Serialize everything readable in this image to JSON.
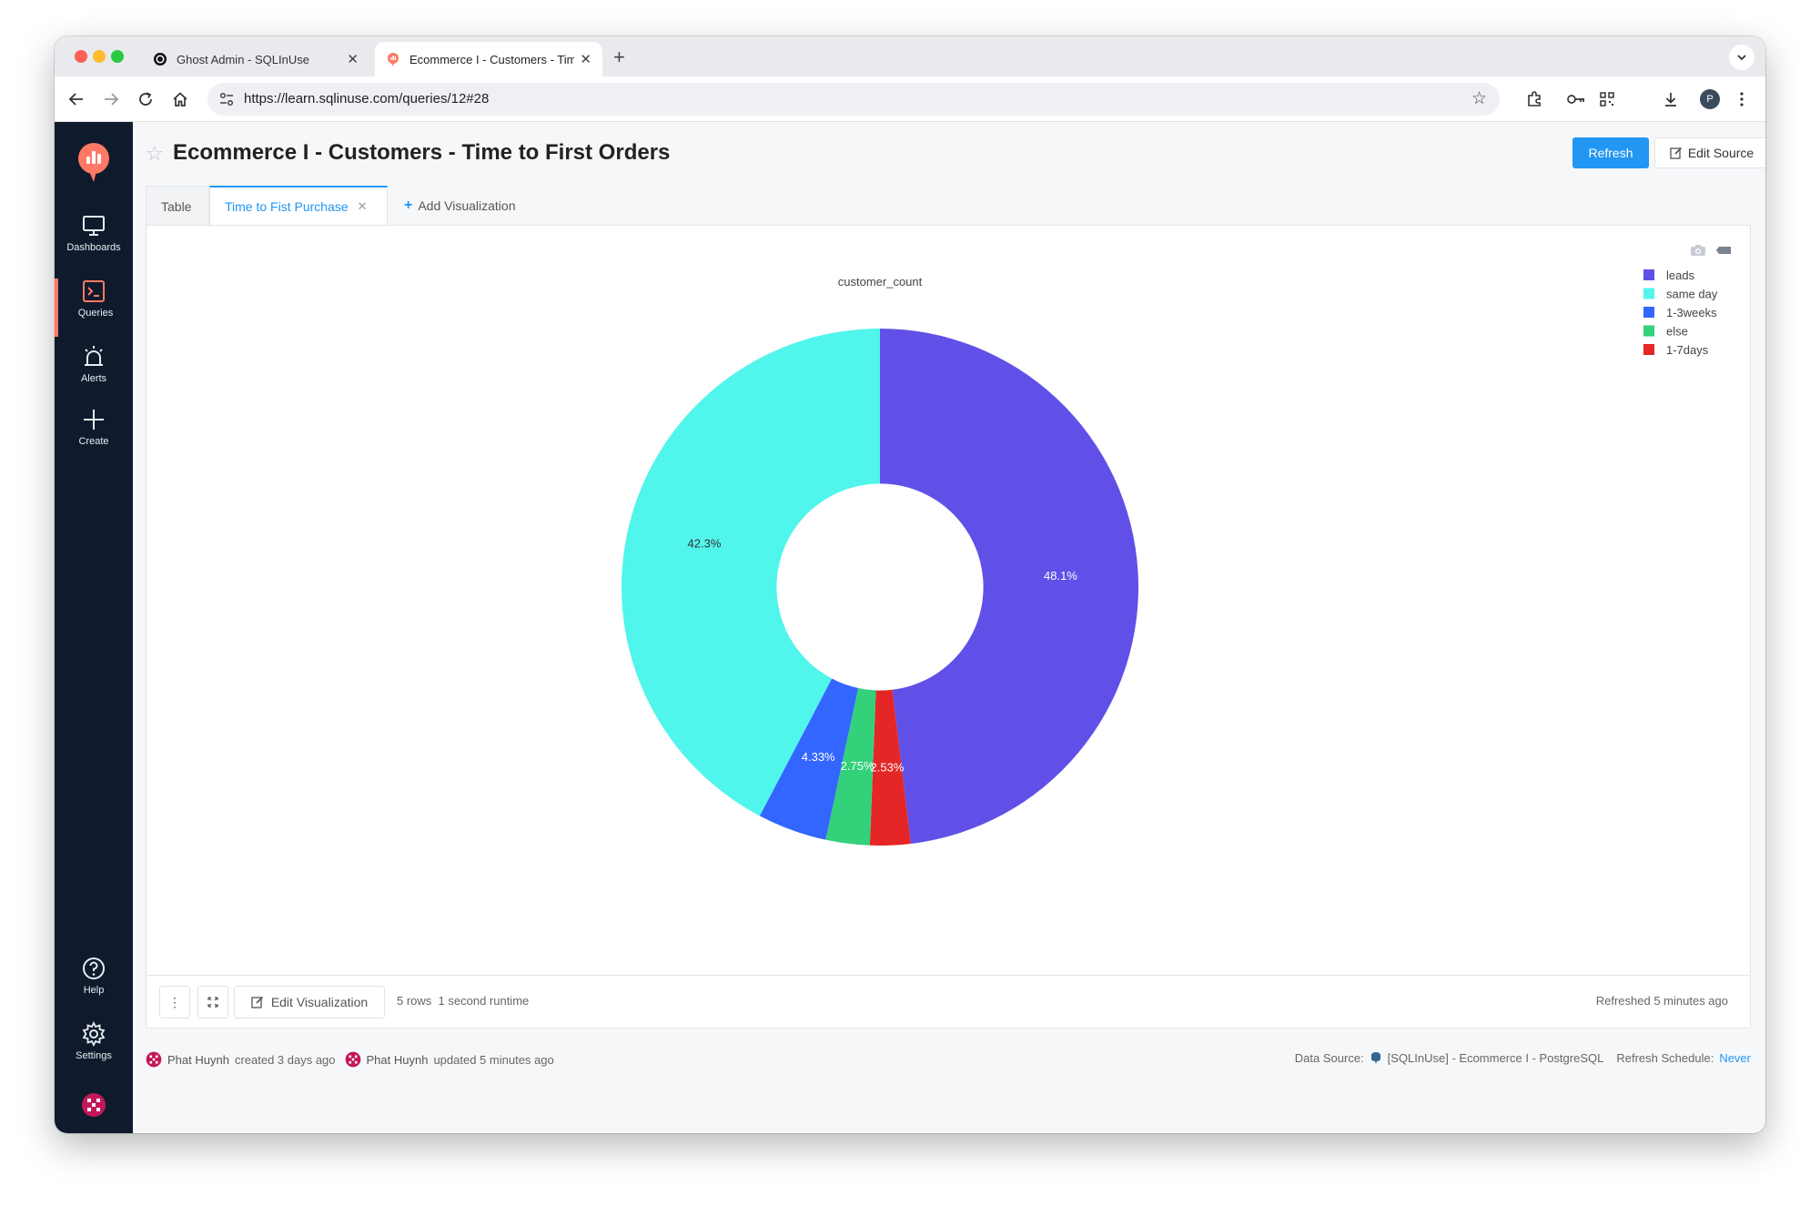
{
  "browser": {
    "tabs": [
      {
        "title": "Ghost Admin - SQLInUse",
        "active": false
      },
      {
        "title": "Ecommerce I - Customers - Time to First Orders",
        "active": true
      }
    ],
    "url": "https://learn.sqlinuse.com/queries/12#28",
    "profile_initial": "P"
  },
  "sidebar": {
    "items": [
      {
        "label": "Dashboards",
        "icon": "monitor-icon"
      },
      {
        "label": "Queries",
        "icon": "terminal-icon"
      },
      {
        "label": "Alerts",
        "icon": "alarm-icon"
      },
      {
        "label": "Create",
        "icon": "plus-icon"
      },
      {
        "label": "Help",
        "icon": "help-icon"
      },
      {
        "label": "Settings",
        "icon": "gear-icon"
      }
    ],
    "accent_color": "#ff7964"
  },
  "page": {
    "title": "Ecommerce I - Customers - Time to First Orders",
    "refresh_label": "Refresh",
    "edit_source_label": "Edit Source"
  },
  "viz_tabs": {
    "table": "Table",
    "active": "Time to Fist Purchase",
    "add": "Add Visualization"
  },
  "chart_data": {
    "type": "pie",
    "hole": 0.4,
    "title": "customer_count",
    "labels": [
      "leads",
      "same day",
      "1-3weeks",
      "else",
      "1-7days"
    ],
    "legend_order": [
      "leads",
      "same day",
      "1-3weeks",
      "else",
      "1-7days"
    ],
    "slice_order": [
      "leads",
      "1-7days",
      "else",
      "1-3weeks",
      "same day"
    ],
    "percent_labels": {
      "leads": "48.1%",
      "same day": "42.3%",
      "1-3weeks": "4.33%",
      "else": "2.75%",
      "1-7days": "2.53%"
    },
    "values": {
      "leads": 48.1,
      "same day": 42.3,
      "1-3weeks": 4.33,
      "else": 2.75,
      "1-7days": 2.53
    },
    "colors": {
      "leads": "#6050e8",
      "same day": "#50f5ec",
      "1-3weeks": "#3366ff",
      "else": "#33d17a",
      "1-7days": "#e52626"
    },
    "legend_position": "top-right"
  },
  "footer": {
    "edit_viz_label": "Edit Visualization",
    "rows": "5 rows",
    "runtime": "1 second runtime",
    "refreshed_label": "Refreshed",
    "refreshed_time": "5 minutes ago"
  },
  "meta": {
    "creator": "Phat Huynh",
    "created": "created 3 days ago",
    "updater": "Phat Huynh",
    "updated": "updated 5 minutes ago",
    "data_source_label": "Data Source:",
    "data_source": "[SQLInUse] - Ecommerce I - PostgreSQL",
    "schedule_label": "Refresh Schedule:",
    "schedule": "Never"
  }
}
